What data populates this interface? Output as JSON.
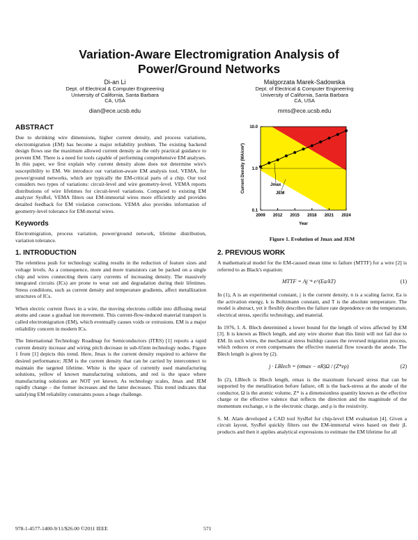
{
  "header": {
    "title": "Variation-Aware Electromigration Analysis of Power/Ground Networks",
    "authors": [
      {
        "name": "Di-an Li",
        "affiliation": [
          "Dept. of Electrical & Computer Engineering",
          "University of California, Santa Barbara",
          "CA, USA"
        ],
        "email": "dian@ece.ucsb.edu"
      },
      {
        "name": "Malgorzata Marek-Sadowska",
        "affiliation": [
          "Dept. of Electrical & Computer Engineering",
          "University of California, Santa Barbara",
          "CA, USA"
        ],
        "email": "mms@ece.ucsb.edu"
      }
    ]
  },
  "body": {
    "left": [
      {
        "heading": "ABSTRACT"
      },
      {
        "text": "Due to shrinking wire dimensions, higher current density, and process variations, electromigration (EM) has become a major reliability problem. The existing backend design flows use the maximum allowed current density as the only practical guidance to prevent EM. There is a need for tools capable of performing comprehensive EM analyses. In this paper, we first explain why current density alone does not determine wire's susceptibility to EM. We introduce our variation-aware EM analysis tool, VEMA, for power/ground networks, which are typically the EM-critical parts of a chip. Our tool considers two types of variations: circuit-level and wire geometry-level. VEMA reports distributions of wire lifetimes for circuit-level variations. Compared to existing EM analyzer SysRel, VEMA filters out EM-immortal wires more efficiently and provides detailed feedback for EM violation corrections. VEMA also provides information of geometry-level tolerance for EM-mortal wires."
      },
      {
        "heading": "Keywords"
      },
      {
        "text": "Electromigration, process variation, power/ground network, lifetime distribution, variation tolerance."
      },
      {
        "heading": "1.  INTRODUCTION"
      },
      {
        "text": "The relentless push for technology scaling results in the reduction of feature sizes and voltage levels. As a consequence, more and more transistors can be packed on a single chip and wires connecting them carry currents of increasing density. The massively integrated circuits (ICs) are prone to wear out and degradation during their lifetimes. Stress conditions, such as current density and temperature gradients, affect metallization structures of ICs."
      },
      {
        "text": "When electric current flows in a wire, the moving electrons collide into diffusing metal atoms and cause a gradual ion movement. This current-flow-induced material transport is called electromigration (EM), which eventually causes voids or extrusions. EM is a major reliability concern in modern ICs."
      },
      {
        "text": "The International Technology Roadmap for Semiconductors (ITRS) [1] reports a rapid current density increase and wiring pitch decrease in sub-65nm technology nodes. Figure 1 from [1] depicts this trend. Here, Jmax is the current density required to achieve the desired performance; JEM is the current density that can be carried by interconnect to maintain the targeted lifetime. White is the space of currently used manufacturing solutions, yellow of known manufacturing solutions, and red is the space where manufacturing solutions are NOT yet known. As technology scales, Jmax and JEM rapidly change – the former increases and the latter decreases. This trend indicates that satisfying EM reliability constraints poses a huge challenge."
      }
    ],
    "right": [
      {
        "heading": "2.  PREVIOUS WORK"
      },
      {
        "text": "A mathematical model for the EM-caused mean time to failure (MTTF) for a wire [2] is referred to as Black's equation:"
      },
      {
        "equation": "MTTF = Aj⁻ⁿ e^(Ea/kT)",
        "number": "(1)"
      },
      {
        "text": "In (1), A is an experimental constant, j is the current density, n is a scaling factor, Ea is the activation energy, k is Boltzmann constant, and T is the absolute temperature. The model is abstract, yet it flexibly describes the failure rate dependence on the temperature, electrical stress, specific technology, and material."
      },
      {
        "text": "In 1976, I. A. Blech determined a lower bound for the length of wires affected by EM [3]. It is known as Blech length, and any wire shorter than this limit will not fail due to EM. In such wires, the mechanical stress buildup causes the reversed migration process, which reduces or even compensates the effective material flow towards the anode. The Blech length is given by (2)."
      },
      {
        "equation": "j · LBlech = (σmax − σR)Ω / (Z*eρ)",
        "number": "(2)"
      },
      {
        "text": "In (2), LBlech is Blech length, σmax is the maximum forward stress that can be supported by the metallization before failure, σR is the back-stress at the anode of the conductor, Ω is the atomic volume, Z* is a dimensionless quantity known as the effective charge or the effective valence that reflects the direction and the magnitude of the momentum exchange, e is the electronic charge, and ρ is the resistivity."
      },
      {
        "text": "S. M. Alam developed a CAD tool SysRel for chip-level EM evaluation [4]. Given a circuit layout, SysRel quickly filters out the EM-immortal wires based on their jL products and then it applies analytical expressions to estimate the EM lifetime for all"
      }
    ]
  },
  "figure": {
    "caption": "Figure 1. Evolution of Jmax and JEM"
  },
  "chart_data": {
    "type": "line",
    "x_label": "Year",
    "y_label": "Current Density (MA/cm²)",
    "xlim": [
      2009,
      2024
    ],
    "xticks": [
      2009,
      2012,
      2015,
      2018,
      2021,
      2024
    ],
    "ylim": [
      0.1,
      10
    ],
    "yticks": [
      0.1,
      {
        "value": 1,
        "label": "1.0"
      },
      {
        "value": 10,
        "label": "10.0"
      }
    ],
    "log_y": true,
    "series": [
      {
        "name": "Jmax",
        "color": "#000000",
        "x": [
          2009,
          2010.5,
          2012,
          2013.5,
          2015,
          2016.5,
          2018,
          2019.5,
          2021,
          2022.5,
          2024
        ],
        "values": [
          1.1,
          1.35,
          1.6,
          2.0,
          2.4,
          2.9,
          3.5,
          4.3,
          5.3,
          6.5,
          8.0
        ]
      },
      {
        "name": "JEM",
        "color": "#e8231f",
        "x": [
          2011,
          2024
        ],
        "values": [
          10,
          0.9
        ]
      },
      {
        "color": "#ffee00",
        "x": [
          2009,
          2021
        ],
        "values": [
          0.9,
          0.1
        ]
      }
    ]
  },
  "footer": {
    "copyright": "978-1-4577-1400-9/11/$26.00 ©2011 IEEE",
    "page": "571"
  }
}
